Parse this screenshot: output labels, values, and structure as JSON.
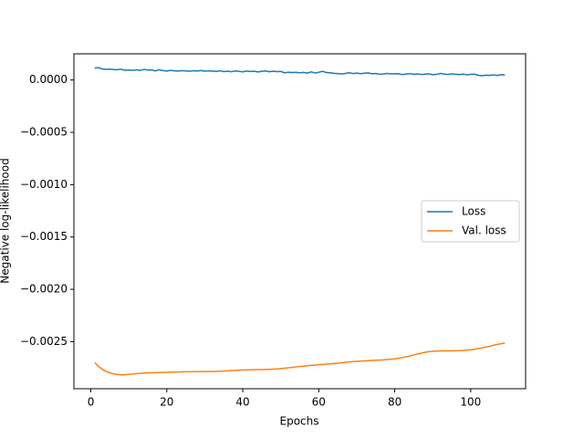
{
  "chart_data": {
    "type": "line",
    "xlabel": "Epochs",
    "ylabel": "Negative log-likelihood",
    "x": [
      1,
      2,
      3,
      4,
      5,
      6,
      7,
      8,
      9,
      10,
      11,
      12,
      13,
      14,
      15,
      16,
      17,
      18,
      19,
      20,
      21,
      22,
      23,
      24,
      25,
      26,
      27,
      28,
      29,
      30,
      31,
      32,
      33,
      34,
      35,
      36,
      37,
      38,
      39,
      40,
      41,
      42,
      43,
      44,
      45,
      46,
      47,
      48,
      49,
      50,
      51,
      52,
      53,
      54,
      55,
      56,
      57,
      58,
      59,
      60,
      61,
      62,
      63,
      64,
      65,
      66,
      67,
      68,
      69,
      70,
      71,
      72,
      73,
      74,
      75,
      76,
      77,
      78,
      79,
      80,
      81,
      82,
      83,
      84,
      85,
      86,
      87,
      88,
      89,
      90,
      91,
      92,
      93,
      94,
      95,
      96,
      97,
      98,
      99,
      100,
      101,
      102,
      103,
      104,
      105,
      106,
      107,
      108,
      109
    ],
    "series": [
      {
        "name": "Loss",
        "color": "#1f77b4",
        "values": [
          0.000115,
          0.000118,
          0.000105,
          0.000102,
          0.000104,
          0.0001,
          9.8e-05,
          0.000103,
          9.2e-05,
          9.5e-05,
          9.3e-05,
          9.7e-05,
          9.1e-05,
          0.000102,
          9.4e-05,
          9.6e-05,
          8.7e-05,
          9.8e-05,
          9e-05,
          8.6e-05,
          9.2e-05,
          8.8e-05,
          8.5e-05,
          9e-05,
          8.7e-05,
          8.3e-05,
          8.9e-05,
          8.6e-05,
          9.1e-05,
          8.4e-05,
          8.7e-05,
          8.5e-05,
          8.2e-05,
          8.8e-05,
          8e-05,
          8.4e-05,
          7.9e-05,
          8.6e-05,
          8.3e-05,
          7.8e-05,
          8.5e-05,
          8.1e-05,
          8.4e-05,
          7.7e-05,
          8.3e-05,
          8.6e-05,
          7.9e-05,
          8.4e-05,
          8e-05,
          8.2e-05,
          6.8e-05,
          7.4e-05,
          7.1e-05,
          7.3e-05,
          6.9e-05,
          7.2e-05,
          6.6e-05,
          7.8e-05,
          6.7e-05,
          7.4e-05,
          8.3e-05,
          7.1e-05,
          6.9e-05,
          6.4e-05,
          6.1e-05,
          5.8e-05,
          6.3e-05,
          7e-05,
          6.2e-05,
          6.6e-05,
          6e-05,
          6.5e-05,
          6.8e-05,
          5.9e-05,
          6.2e-05,
          5.5e-05,
          5.7e-05,
          6.3e-05,
          5.8e-05,
          6e-05,
          5.9e-05,
          5.2e-05,
          5.7e-05,
          6.1e-05,
          5.5e-05,
          5.8e-05,
          5.3e-05,
          5.6e-05,
          5.9e-05,
          5.1e-05,
          5.4e-05,
          6.2e-05,
          5.7e-05,
          5.3e-05,
          5.8e-05,
          5.5e-05,
          5.2e-05,
          5.7e-05,
          5e-05,
          5.4e-05,
          5.6e-05,
          4.5e-05,
          4.1e-05,
          4.6e-05,
          4.4e-05,
          4.8e-05,
          4.3e-05,
          5.1e-05,
          4.6e-05
        ]
      },
      {
        "name": "Val. loss",
        "color": "#ff7f0e",
        "values": [
          -0.0027,
          -0.002735,
          -0.002765,
          -0.002785,
          -0.002798,
          -0.002808,
          -0.002814,
          -0.002817,
          -0.002816,
          -0.002813,
          -0.00281,
          -0.002806,
          -0.002803,
          -0.0028,
          -0.002798,
          -0.002797,
          -0.002796,
          -0.002795,
          -0.002794,
          -0.002793,
          -0.002792,
          -0.002791,
          -0.00279,
          -0.002789,
          -0.002788,
          -0.002788,
          -0.002787,
          -0.002787,
          -0.002786,
          -0.002786,
          -0.002785,
          -0.002785,
          -0.002784,
          -0.002783,
          -0.002781,
          -0.002779,
          -0.002777,
          -0.002775,
          -0.002773,
          -0.002771,
          -0.00277,
          -0.002769,
          -0.002768,
          -0.002767,
          -0.002767,
          -0.002766,
          -0.002765,
          -0.002763,
          -0.002761,
          -0.002758,
          -0.002754,
          -0.00275,
          -0.002746,
          -0.002742,
          -0.002738,
          -0.002734,
          -0.00273,
          -0.002727,
          -0.002724,
          -0.002721,
          -0.002718,
          -0.002715,
          -0.002712,
          -0.002709,
          -0.002706,
          -0.002702,
          -0.002698,
          -0.002694,
          -0.002691,
          -0.002688,
          -0.002686,
          -0.002684,
          -0.002682,
          -0.00268,
          -0.002678,
          -0.002676,
          -0.002674,
          -0.002671,
          -0.002668,
          -0.002664,
          -0.002659,
          -0.002652,
          -0.002645,
          -0.002637,
          -0.002628,
          -0.002619,
          -0.00261,
          -0.002602,
          -0.002596,
          -0.002592,
          -0.00259,
          -0.002589,
          -0.002588,
          -0.002588,
          -0.002587,
          -0.002587,
          -0.002586,
          -0.002584,
          -0.002581,
          -0.002578,
          -0.002573,
          -0.002567,
          -0.00256,
          -0.002552,
          -0.002544,
          -0.002535,
          -0.002527,
          -0.00252,
          -0.002513
        ]
      }
    ],
    "xlim": [
      -4.45,
      114.45
    ],
    "xticks": [
      0,
      20,
      40,
      60,
      80,
      100
    ],
    "ylim": [
      -0.00295,
      0.00025
    ],
    "yticks": [
      {
        "value": -0.0025,
        "label": "−0.0025"
      },
      {
        "value": -0.002,
        "label": "−0.0020"
      },
      {
        "value": -0.0015,
        "label": "−0.0015"
      },
      {
        "value": -0.001,
        "label": "−0.0010"
      },
      {
        "value": -0.0005,
        "label": "−0.0005"
      },
      {
        "value": 0,
        "label": "0.0000"
      }
    ],
    "legend": "center right"
  }
}
